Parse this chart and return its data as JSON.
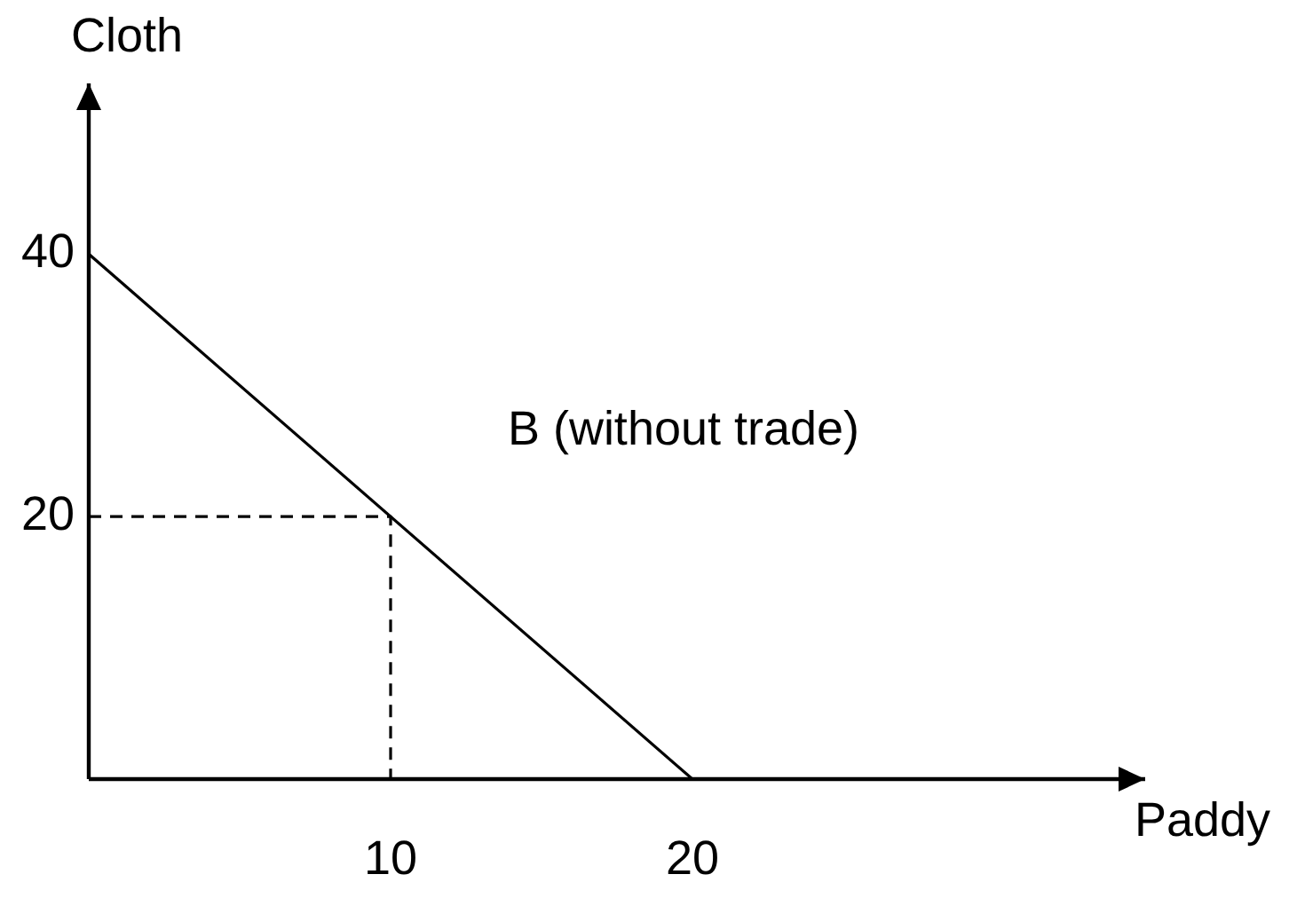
{
  "chart_data": {
    "type": "line",
    "xlabel": "Paddy",
    "ylabel": "Cloth",
    "series": [
      {
        "x": [
          0,
          20
        ],
        "values": [
          40,
          0
        ],
        "color": "#000000"
      },
      {
        "x": [
          0,
          10,
          10
        ],
        "values": [
          20,
          20,
          0
        ],
        "color": "#000000",
        "line_style": "dashed"
      }
    ],
    "xlim": [
      0,
      35
    ],
    "ylim": [
      0,
      53
    ],
    "xticks": [
      10,
      20
    ],
    "yticks": [
      20,
      40
    ],
    "annotations": [
      "B (without trade)"
    ],
    "grid": false,
    "legend": false,
    "marker": "none",
    "line_style": "solid"
  }
}
